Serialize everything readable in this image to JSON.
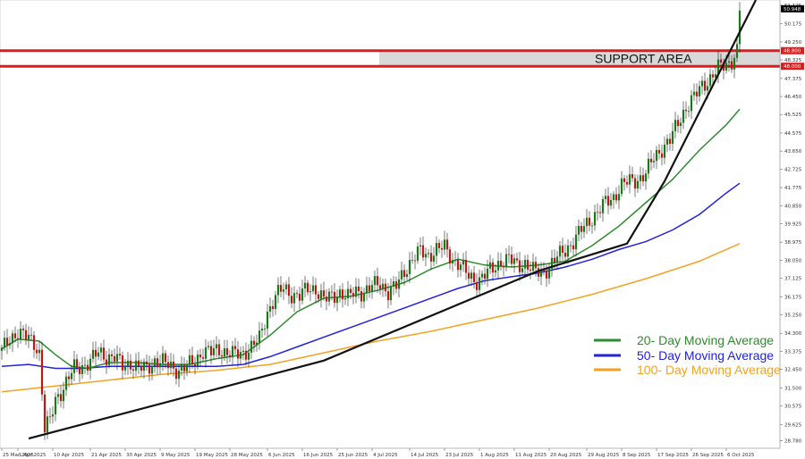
{
  "chart_data": {
    "type": "candlestick",
    "title": "",
    "xlabel": "",
    "ylabel": "",
    "ylim": [
      28.4,
      51.4
    ],
    "y_ticks": [
      {
        "v": 28.78,
        "label": "28.780"
      },
      {
        "v": 29.625,
        "label": "29.625"
      },
      {
        "v": 30.575,
        "label": "30.575"
      },
      {
        "v": 31.5,
        "label": "31.500"
      },
      {
        "v": 32.45,
        "label": "32.450"
      },
      {
        "v": 33.375,
        "label": "33.375"
      },
      {
        "v": 34.3,
        "label": "34.300"
      },
      {
        "v": 35.25,
        "label": "35.250"
      },
      {
        "v": 36.175,
        "label": "36.175"
      },
      {
        "v": 37.125,
        "label": "37.125"
      },
      {
        "v": 38.05,
        "label": "38.050"
      },
      {
        "v": 38.975,
        "label": "38.975"
      },
      {
        "v": 39.925,
        "label": "39.925"
      },
      {
        "v": 40.85,
        "label": "40.850"
      },
      {
        "v": 41.775,
        "label": "41.775"
      },
      {
        "v": 42.725,
        "label": "42.725"
      },
      {
        "v": 43.65,
        "label": "43.650"
      },
      {
        "v": 44.575,
        "label": "44.575"
      },
      {
        "v": 45.525,
        "label": "45.525"
      },
      {
        "v": 46.45,
        "label": "46.450"
      },
      {
        "v": 47.375,
        "label": "47.375"
      },
      {
        "v": 48.325,
        "label": "48.325"
      },
      {
        "v": 49.25,
        "label": "49.250"
      },
      {
        "v": 50.175,
        "label": "50.175"
      },
      {
        "v": 51.125,
        "label": "51.125"
      }
    ],
    "x_ticks": [
      {
        "i": 0,
        "label": "25 Mar 2025"
      },
      {
        "i": 6,
        "label": "1 Apr 2025"
      },
      {
        "i": 19,
        "label": "10 Apr 2025"
      },
      {
        "i": 33,
        "label": "21 Apr 2025"
      },
      {
        "i": 46,
        "label": "30 Apr 2025"
      },
      {
        "i": 59,
        "label": "9 May 2025"
      },
      {
        "i": 72,
        "label": "19 May 2025"
      },
      {
        "i": 85,
        "label": "28 May 2025"
      },
      {
        "i": 99,
        "label": "6 Jun 2025"
      },
      {
        "i": 112,
        "label": "16 Jun 2025"
      },
      {
        "i": 125,
        "label": "25 Jun 2025"
      },
      {
        "i": 138,
        "label": "4 Jul 2025"
      },
      {
        "i": 152,
        "label": "14 Jul 2025"
      },
      {
        "i": 165,
        "label": "23 Jul 2025"
      },
      {
        "i": 178,
        "label": "1 Aug 2025"
      },
      {
        "i": 191,
        "label": "11 Aug 2025"
      },
      {
        "i": 204,
        "label": "20 Aug 2025"
      },
      {
        "i": 218,
        "label": "29 Aug 2025"
      },
      {
        "i": 231,
        "label": "8 Sep 2025"
      },
      {
        "i": 244,
        "label": "17 Sep 2025"
      },
      {
        "i": 257,
        "label": "26 Sep 2025"
      },
      {
        "i": 270,
        "label": "6 Oct 2025"
      }
    ],
    "n_bars": 276,
    "close_path": [
      [
        0,
        33.4
      ],
      [
        3,
        34.0
      ],
      [
        6,
        34.4
      ],
      [
        9,
        34.1
      ],
      [
        12,
        33.8
      ],
      [
        14,
        33.3
      ],
      [
        16,
        29.4
      ],
      [
        18,
        29.8
      ],
      [
        20,
        30.9
      ],
      [
        22,
        31.3
      ],
      [
        24,
        31.8
      ],
      [
        27,
        32.5
      ],
      [
        30,
        32.6
      ],
      [
        33,
        32.9
      ],
      [
        36,
        33.3
      ],
      [
        39,
        33.1
      ],
      [
        42,
        33.1
      ],
      [
        45,
        32.6
      ],
      [
        48,
        32.8
      ],
      [
        51,
        32.5
      ],
      [
        54,
        32.5
      ],
      [
        57,
        32.9
      ],
      [
        60,
        32.8
      ],
      [
        63,
        32.6
      ],
      [
        66,
        32.4
      ],
      [
        69,
        32.6
      ],
      [
        72,
        32.9
      ],
      [
        75,
        33.4
      ],
      [
        78,
        33.3
      ],
      [
        81,
        33.5
      ],
      [
        84,
        33.3
      ],
      [
        87,
        33.2
      ],
      [
        90,
        33.3
      ],
      [
        93,
        33.6
      ],
      [
        96,
        34.0
      ],
      [
        99,
        35.4
      ],
      [
        102,
        36.2
      ],
      [
        105,
        36.6
      ],
      [
        108,
        36.3
      ],
      [
        111,
        36.2
      ],
      [
        114,
        36.6
      ],
      [
        117,
        36.6
      ],
      [
        120,
        36.0
      ],
      [
        123,
        36.2
      ],
      [
        126,
        36.4
      ],
      [
        129,
        36.1
      ],
      [
        132,
        36.5
      ],
      [
        135,
        36.4
      ],
      [
        138,
        36.7
      ],
      [
        141,
        36.9
      ],
      [
        144,
        36.4
      ],
      [
        147,
        36.7
      ],
      [
        150,
        37.5
      ],
      [
        153,
        38.1
      ],
      [
        156,
        38.5
      ],
      [
        159,
        38.3
      ],
      [
        162,
        38.6
      ],
      [
        165,
        38.7
      ],
      [
        168,
        38.1
      ],
      [
        171,
        37.8
      ],
      [
        174,
        37.2
      ],
      [
        177,
        37.0
      ],
      [
        180,
        37.3
      ],
      [
        183,
        37.6
      ],
      [
        186,
        38.0
      ],
      [
        189,
        38.1
      ],
      [
        192,
        37.8
      ],
      [
        195,
        37.9
      ],
      [
        198,
        37.5
      ],
      [
        201,
        37.4
      ],
      [
        204,
        37.7
      ],
      [
        207,
        38.2
      ],
      [
        210,
        38.6
      ],
      [
        213,
        39.0
      ],
      [
        216,
        39.6
      ],
      [
        219,
        40.1
      ],
      [
        222,
        40.5
      ],
      [
        225,
        41.0
      ],
      [
        228,
        41.3
      ],
      [
        231,
        41.9
      ],
      [
        234,
        42.1
      ],
      [
        237,
        42.2
      ],
      [
        240,
        42.5
      ],
      [
        243,
        43.3
      ],
      [
        246,
        43.8
      ],
      [
        249,
        44.2
      ],
      [
        252,
        45.1
      ],
      [
        255,
        45.9
      ],
      [
        258,
        46.4
      ],
      [
        261,
        47.0
      ],
      [
        264,
        47.4
      ],
      [
        267,
        47.9
      ],
      [
        270,
        48.1
      ],
      [
        272,
        48.3
      ],
      [
        274,
        48.8
      ],
      [
        275,
        50.9
      ]
    ],
    "sma_20": [
      [
        0,
        33.5
      ],
      [
        6,
        34.0
      ],
      [
        14,
        33.9
      ],
      [
        20,
        33.2
      ],
      [
        26,
        32.6
      ],
      [
        32,
        32.5
      ],
      [
        40,
        32.8
      ],
      [
        50,
        32.8
      ],
      [
        60,
        32.7
      ],
      [
        70,
        32.7
      ],
      [
        80,
        33.0
      ],
      [
        90,
        33.2
      ],
      [
        100,
        34.2
      ],
      [
        110,
        35.4
      ],
      [
        120,
        36.1
      ],
      [
        130,
        36.2
      ],
      [
        140,
        36.5
      ],
      [
        150,
        36.9
      ],
      [
        160,
        37.6
      ],
      [
        170,
        38.1
      ],
      [
        180,
        37.8
      ],
      [
        190,
        37.7
      ],
      [
        200,
        37.8
      ],
      [
        210,
        38.0
      ],
      [
        220,
        38.8
      ],
      [
        230,
        39.8
      ],
      [
        240,
        41.0
      ],
      [
        250,
        42.2
      ],
      [
        260,
        43.7
      ],
      [
        270,
        45.0
      ],
      [
        275,
        45.8
      ]
    ],
    "sma_50": [
      [
        0,
        32.6
      ],
      [
        10,
        32.7
      ],
      [
        20,
        32.5
      ],
      [
        30,
        32.5
      ],
      [
        40,
        32.6
      ],
      [
        50,
        32.6
      ],
      [
        60,
        32.6
      ],
      [
        70,
        32.6
      ],
      [
        80,
        32.6
      ],
      [
        90,
        32.7
      ],
      [
        100,
        33.1
      ],
      [
        110,
        33.6
      ],
      [
        120,
        34.1
      ],
      [
        130,
        34.6
      ],
      [
        140,
        35.1
      ],
      [
        150,
        35.6
      ],
      [
        160,
        36.1
      ],
      [
        170,
        36.6
      ],
      [
        180,
        37.0
      ],
      [
        190,
        37.2
      ],
      [
        200,
        37.4
      ],
      [
        210,
        37.7
      ],
      [
        220,
        38.1
      ],
      [
        230,
        38.6
      ],
      [
        240,
        39.0
      ],
      [
        250,
        39.6
      ],
      [
        260,
        40.4
      ],
      [
        270,
        41.5
      ],
      [
        275,
        42.0
      ]
    ],
    "sma_100": [
      [
        0,
        31.3
      ],
      [
        20,
        31.6
      ],
      [
        40,
        31.9
      ],
      [
        60,
        32.2
      ],
      [
        80,
        32.4
      ],
      [
        100,
        32.7
      ],
      [
        120,
        33.3
      ],
      [
        140,
        33.9
      ],
      [
        160,
        34.4
      ],
      [
        180,
        35.0
      ],
      [
        200,
        35.6
      ],
      [
        220,
        36.3
      ],
      [
        240,
        37.1
      ],
      [
        260,
        38.0
      ],
      [
        275,
        38.9
      ]
    ],
    "series": [
      {
        "name": "20- Day Moving Average",
        "color": "#2e8b2e"
      },
      {
        "name": "50- Day Moving Average",
        "color": "#2222dd"
      },
      {
        "name": "100- Day Moving Average",
        "color": "#f4a224"
      }
    ],
    "candle_up_color": "#1a7a1a",
    "candle_down_color": "#c01616",
    "trendline": [
      [
        10,
        28.9
      ],
      [
        120,
        32.9
      ],
      [
        200,
        37.5
      ],
      [
        233,
        38.9
      ],
      [
        247,
        42.1
      ],
      [
        281,
        51.4
      ]
    ],
    "support_area": {
      "label": "SUPPORT AREA",
      "high": 48.8,
      "low": 48.0,
      "high_label": "48.800",
      "low_label": "48.000"
    },
    "last_price_label": "50.948",
    "last_price": 50.95,
    "legend_position": "bottom-right",
    "grid": false
  }
}
